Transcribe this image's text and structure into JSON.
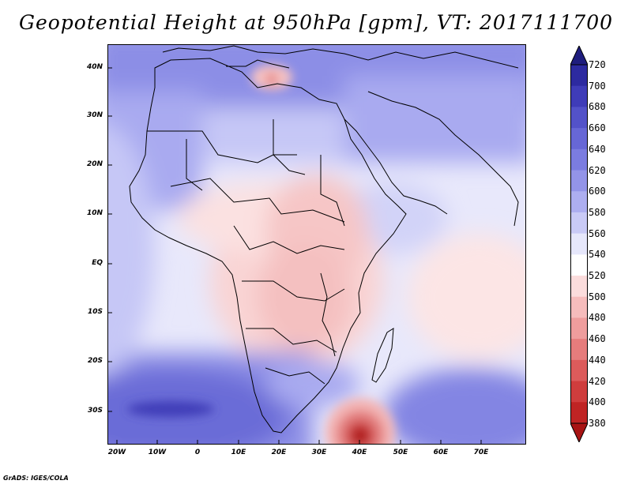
{
  "title": "Geopotential Height at 950hPa [gpm], VT: 2017111700",
  "credit": "GrADS: IGES/COLA",
  "map": {
    "lat_labels": [
      "40N",
      "30N",
      "20N",
      "10N",
      "EQ",
      "10S",
      "20S",
      "30S"
    ],
    "lon_labels": [
      "20W",
      "10W",
      "0",
      "10E",
      "20E",
      "30E",
      "40E",
      "50E",
      "60E",
      "70E"
    ]
  },
  "colorbar": {
    "labels": [
      "720",
      "700",
      "680",
      "660",
      "640",
      "620",
      "600",
      "580",
      "560",
      "540",
      "520",
      "500",
      "480",
      "460",
      "440",
      "420",
      "400",
      "380"
    ],
    "colors": [
      "#1f1d7e",
      "#2d2aa0",
      "#3f3cb8",
      "#5352c9",
      "#6767d6",
      "#7b7ce0",
      "#9394e8",
      "#adaef0",
      "#c9caf6",
      "#e6e7fb",
      "#ffffff",
      "#fbdcdc",
      "#f6bcbc",
      "#ef9d9d",
      "#e67c7c",
      "#dc5b5b",
      "#cf3d3d",
      "#bf2424",
      "#a81414"
    ]
  }
}
